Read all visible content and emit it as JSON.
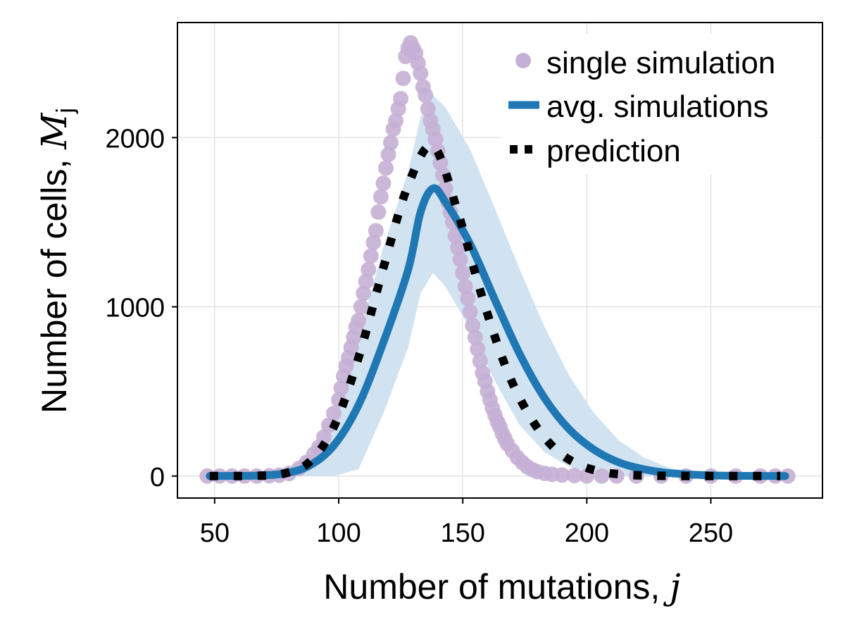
{
  "chart_data": {
    "type": "scatter",
    "xlabel": "Number of mutations, ",
    "xlabel_symbol": "j",
    "ylabel": "Number of cells, ",
    "ylabel_symbol": "M",
    "ylabel_subscript": "j",
    "xlim": [
      35,
      295
    ],
    "ylim": [
      -130,
      2680
    ],
    "xticks": [
      50,
      100,
      150,
      200,
      250
    ],
    "yticks": [
      0,
      1000,
      2000
    ],
    "grid": true,
    "legend_position": "top-right",
    "colors": {
      "single": "#c5b0d5",
      "avg": "#1f77b4",
      "band": "#cfe2f0",
      "prediction": "#000000"
    },
    "series": [
      {
        "name": "single simulation",
        "kind": "scatter",
        "points": [
          [
            47,
            0
          ],
          [
            52,
            0
          ],
          [
            57,
            0
          ],
          [
            62,
            0
          ],
          [
            67,
            0
          ],
          [
            72,
            2
          ],
          [
            76,
            5
          ],
          [
            80,
            15
          ],
          [
            84,
            45
          ],
          [
            87,
            80
          ],
          [
            90,
            130
          ],
          [
            92,
            170
          ],
          [
            94,
            230
          ],
          [
            96,
            300
          ],
          [
            98,
            370
          ],
          [
            100,
            450
          ],
          [
            101,
            520
          ],
          [
            102,
            590
          ],
          [
            103,
            650
          ],
          [
            104,
            700
          ],
          [
            105,
            760
          ],
          [
            106,
            820
          ],
          [
            107,
            880
          ],
          [
            108,
            920
          ],
          [
            109,
            1000
          ],
          [
            110,
            1080
          ],
          [
            111,
            1150
          ],
          [
            112,
            1220
          ],
          [
            113,
            1300
          ],
          [
            114,
            1380
          ],
          [
            115,
            1450
          ],
          [
            116,
            1560
          ],
          [
            117,
            1650
          ],
          [
            118,
            1730
          ],
          [
            119,
            1820
          ],
          [
            120,
            1900
          ],
          [
            121,
            1970
          ],
          [
            122,
            2050
          ],
          [
            123,
            2100
          ],
          [
            124,
            2170
          ],
          [
            125,
            2230
          ],
          [
            126,
            2350
          ],
          [
            127,
            2480
          ],
          [
            128,
            2530
          ],
          [
            129,
            2560
          ],
          [
            130,
            2530
          ],
          [
            131,
            2500
          ],
          [
            132,
            2440
          ],
          [
            133,
            2380
          ],
          [
            134,
            2300
          ],
          [
            135,
            2250
          ],
          [
            136,
            2170
          ],
          [
            137,
            2100
          ],
          [
            138,
            2050
          ],
          [
            139,
            1990
          ],
          [
            140,
            1920
          ],
          [
            141,
            1850
          ],
          [
            142,
            1780
          ],
          [
            143,
            1700
          ],
          [
            144,
            1620
          ],
          [
            145,
            1560
          ],
          [
            146,
            1500
          ],
          [
            147,
            1420
          ],
          [
            148,
            1350
          ],
          [
            149,
            1280
          ],
          [
            150,
            1200
          ],
          [
            151,
            1120
          ],
          [
            152,
            1050
          ],
          [
            153,
            970
          ],
          [
            154,
            890
          ],
          [
            155,
            820
          ],
          [
            156,
            750
          ],
          [
            157,
            680
          ],
          [
            158,
            610
          ],
          [
            159,
            560
          ],
          [
            160,
            500
          ],
          [
            161,
            450
          ],
          [
            162,
            400
          ],
          [
            163,
            360
          ],
          [
            164,
            320
          ],
          [
            165,
            290
          ],
          [
            166,
            250
          ],
          [
            167,
            220
          ],
          [
            168,
            190
          ],
          [
            170,
            150
          ],
          [
            172,
            110
          ],
          [
            174,
            80
          ],
          [
            176,
            55
          ],
          [
            178,
            38
          ],
          [
            180,
            26
          ],
          [
            183,
            16
          ],
          [
            186,
            10
          ],
          [
            190,
            6
          ],
          [
            195,
            3
          ],
          [
            200,
            1
          ],
          [
            206,
            0
          ],
          [
            212,
            0
          ],
          [
            220,
            0
          ],
          [
            230,
            0
          ],
          [
            240,
            0
          ],
          [
            250,
            0
          ],
          [
            260,
            0
          ],
          [
            270,
            0
          ],
          [
            276,
            0
          ],
          [
            281,
            0
          ]
        ]
      },
      {
        "name": "avg. simulations",
        "kind": "line",
        "mean": [
          0,
          1,
          3,
          15,
          60,
          180,
          420,
          790,
          1220,
          1560,
          1700,
          1620,
          1370,
          1040,
          720,
          460,
          275,
          155,
          80,
          40,
          18,
          8,
          3,
          1,
          0
        ],
        "lower": [
          0,
          0,
          0,
          0,
          0,
          0,
          40,
          370,
          760,
          1080,
          1200,
          1120,
          870,
          560,
          300,
          140,
          55,
          18,
          4,
          0,
          0,
          0,
          0,
          0,
          0
        ],
        "upper": [
          0,
          2,
          6,
          30,
          120,
          350,
          820,
          1350,
          1800,
          2120,
          2250,
          2180,
          1930,
          1580,
          1220,
          880,
          590,
          370,
          210,
          110,
          50,
          20,
          6,
          2,
          0
        ],
        "x": [
          48,
          58,
          68,
          78,
          88,
          98,
          108,
          118,
          128,
          133,
          138,
          143,
          153,
          163,
          173,
          183,
          193,
          203,
          213,
          223,
          233,
          243,
          253,
          263,
          280
        ]
      },
      {
        "name": "prediction",
        "kind": "dotted-line",
        "x": [
          48,
          58,
          68,
          78,
          88,
          98,
          108,
          118,
          128,
          138,
          148,
          158,
          168,
          178,
          188,
          198,
          208,
          218,
          228,
          238,
          248,
          258,
          268,
          278
        ],
        "values": [
          0,
          0,
          2,
          15,
          80,
          290,
          700,
          1230,
          1720,
          1950,
          1560,
          1050,
          620,
          330,
          150,
          60,
          20,
          6,
          2,
          0,
          0,
          0,
          0,
          0
        ]
      }
    ]
  }
}
